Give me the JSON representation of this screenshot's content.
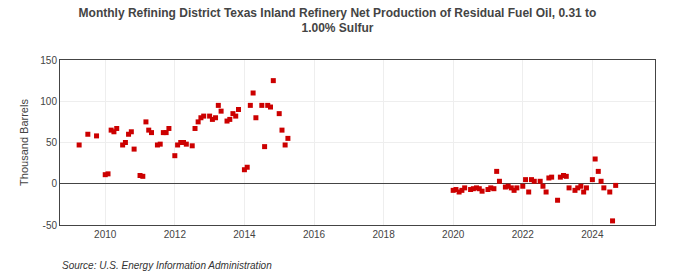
{
  "chart_data": {
    "type": "scatter",
    "title": "Monthly Refining District Texas Inland Refinery Net Production of Residual Fuel Oil, 0.31 to\n1.00% Sulfur",
    "ylabel": "Thousand Barrels",
    "source": "Source: U.S. Energy Information Administration",
    "color": "#cc0000",
    "marker": "square",
    "grid": true,
    "ylim": [
      -50,
      150
    ],
    "yticks": [
      -50,
      0,
      50,
      100,
      150
    ],
    "xlim": [
      2008.7,
      2025.8
    ],
    "xticks": [
      2010,
      2012,
      2014,
      2016,
      2018,
      2020,
      2022,
      2024
    ],
    "x": [
      2009.25,
      2009.5,
      2009.75,
      2010.0,
      2010.08,
      2010.17,
      2010.25,
      2010.33,
      2010.5,
      2010.58,
      2010.67,
      2010.75,
      2010.83,
      2011.0,
      2011.08,
      2011.17,
      2011.25,
      2011.33,
      2011.5,
      2011.58,
      2011.67,
      2011.75,
      2011.83,
      2012.0,
      2012.08,
      2012.17,
      2012.25,
      2012.33,
      2012.5,
      2012.58,
      2012.67,
      2012.75,
      2012.83,
      2013.0,
      2013.08,
      2013.17,
      2013.25,
      2013.33,
      2013.5,
      2013.58,
      2013.67,
      2013.75,
      2013.83,
      2014.0,
      2014.08,
      2014.17,
      2014.25,
      2014.33,
      2014.5,
      2014.58,
      2014.67,
      2014.75,
      2014.83,
      2015.0,
      2015.08,
      2015.17,
      2015.25,
      2020.0,
      2020.08,
      2020.17,
      2020.25,
      2020.33,
      2020.5,
      2020.58,
      2020.67,
      2020.75,
      2020.83,
      2021.0,
      2021.08,
      2021.17,
      2021.25,
      2021.33,
      2021.5,
      2021.58,
      2021.67,
      2021.75,
      2021.83,
      2022.0,
      2022.08,
      2022.17,
      2022.25,
      2022.33,
      2022.5,
      2022.58,
      2022.67,
      2022.75,
      2022.83,
      2023.0,
      2023.08,
      2023.17,
      2023.25,
      2023.33,
      2023.5,
      2023.58,
      2023.67,
      2023.75,
      2023.83,
      2024.0,
      2024.08,
      2024.17,
      2024.25,
      2024.33,
      2024.5,
      2024.58,
      2024.67
    ],
    "values": [
      47,
      60,
      58,
      11,
      12,
      65,
      63,
      67,
      47,
      50,
      60,
      63,
      42,
      10,
      9,
      75,
      65,
      62,
      47,
      48,
      62,
      62,
      67,
      34,
      47,
      50,
      50,
      48,
      46,
      67,
      75,
      80,
      82,
      82,
      78,
      80,
      95,
      88,
      76,
      78,
      85,
      82,
      90,
      17,
      20,
      95,
      110,
      80,
      95,
      45,
      95,
      93,
      125,
      85,
      65,
      47,
      55,
      -8,
      -7,
      -10,
      -8,
      -5,
      -7,
      -6,
      -5,
      -6,
      -9,
      -7,
      -5,
      -6,
      15,
      3,
      -4,
      -3,
      -5,
      -8,
      -5,
      -3,
      5,
      -10,
      5,
      3,
      3,
      -3,
      -10,
      7,
      8,
      -20,
      8,
      10,
      9,
      -5,
      -8,
      -5,
      -3,
      -10,
      -5,
      5,
      30,
      15,
      3,
      -5,
      -10,
      -45,
      -2
    ]
  }
}
